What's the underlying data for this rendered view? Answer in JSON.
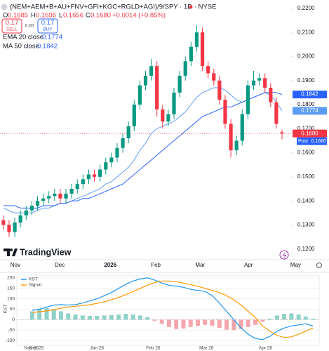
{
  "header": {
    "symbol": "(NEM+AEM+B+AU+FNV+GFI+KGC+RGLD+AGI)/9/SPY · 1D · NYSE",
    "o_key": "O",
    "o": "0.1685",
    "h_key": "H",
    "h": "0.1695",
    "l_key": "L",
    "l": "0.1656",
    "c_key": "C",
    "c": "0.1680",
    "change": "+0.0014 (+0.85%)",
    "sell_price": "0.17",
    "sell": "SELL",
    "spread": "0.00",
    "buy_price": "0.17",
    "buy": "BUY",
    "post": "Post",
    "logo": "TradingView"
  },
  "chart_data": [
    {
      "type": "candlestick",
      "x": [
        0,
        1,
        2,
        3,
        4,
        5,
        6,
        7,
        8,
        9,
        10,
        11,
        12,
        13,
        14,
        15,
        16,
        17,
        18,
        19,
        20,
        21,
        22,
        23,
        24,
        25,
        26,
        27,
        28,
        29,
        30,
        31,
        32,
        33,
        34,
        35,
        36,
        37,
        38,
        39,
        40,
        41,
        42,
        43,
        44,
        45,
        46,
        47,
        48,
        49
      ],
      "open": [
        0.132,
        0.13,
        0.127,
        0.131,
        0.134,
        0.136,
        0.138,
        0.14,
        0.141,
        0.142,
        0.143,
        0.141,
        0.143,
        0.145,
        0.147,
        0.149,
        0.151,
        0.15,
        0.153,
        0.156,
        0.158,
        0.162,
        0.166,
        0.171,
        0.18,
        0.188,
        0.192,
        0.196,
        0.178,
        0.173,
        0.176,
        0.185,
        0.192,
        0.198,
        0.204,
        0.21,
        0.196,
        0.193,
        0.19,
        0.182,
        0.172,
        0.161,
        0.165,
        0.176,
        0.188,
        0.19,
        0.191,
        0.187,
        0.181,
        0.1685
      ],
      "high": [
        0.134,
        0.132,
        0.133,
        0.136,
        0.138,
        0.14,
        0.142,
        0.143,
        0.144,
        0.145,
        0.145,
        0.145,
        0.147,
        0.149,
        0.151,
        0.153,
        0.153,
        0.155,
        0.158,
        0.16,
        0.164,
        0.168,
        0.173,
        0.182,
        0.19,
        0.194,
        0.199,
        0.198,
        0.18,
        0.178,
        0.187,
        0.194,
        0.2,
        0.206,
        0.213,
        0.212,
        0.198,
        0.195,
        0.192,
        0.184,
        0.174,
        0.167,
        0.178,
        0.19,
        0.194,
        0.193,
        0.193,
        0.189,
        0.183,
        0.1695
      ],
      "low": [
        0.128,
        0.125,
        0.125,
        0.129,
        0.132,
        0.134,
        0.136,
        0.138,
        0.139,
        0.14,
        0.139,
        0.139,
        0.141,
        0.143,
        0.145,
        0.147,
        0.148,
        0.148,
        0.151,
        0.154,
        0.156,
        0.16,
        0.164,
        0.169,
        0.178,
        0.186,
        0.19,
        0.175,
        0.17,
        0.171,
        0.174,
        0.183,
        0.19,
        0.196,
        0.202,
        0.194,
        0.191,
        0.188,
        0.18,
        0.17,
        0.158,
        0.159,
        0.163,
        0.174,
        0.186,
        0.188,
        0.185,
        0.179,
        0.17,
        0.1656
      ],
      "close": [
        0.13,
        0.127,
        0.131,
        0.134,
        0.136,
        0.138,
        0.14,
        0.141,
        0.142,
        0.143,
        0.141,
        0.143,
        0.145,
        0.147,
        0.149,
        0.151,
        0.15,
        0.153,
        0.156,
        0.158,
        0.162,
        0.166,
        0.171,
        0.18,
        0.188,
        0.192,
        0.196,
        0.178,
        0.173,
        0.176,
        0.185,
        0.192,
        0.198,
        0.204,
        0.21,
        0.196,
        0.193,
        0.19,
        0.182,
        0.172,
        0.161,
        0.165,
        0.176,
        0.188,
        0.19,
        0.191,
        0.187,
        0.181,
        0.172,
        0.168
      ],
      "up_color": "#089981",
      "down_color": "#f23645",
      "series": [
        {
          "name": "EMA 20 close",
          "legend_value": "0.1774",
          "color": "#5b9cf6",
          "values": [
            0.137,
            0.136,
            0.135,
            0.135,
            0.135,
            0.135,
            0.136,
            0.137,
            0.137,
            0.138,
            0.139,
            0.139,
            0.14,
            0.141,
            0.142,
            0.143,
            0.144,
            0.145,
            0.147,
            0.148,
            0.15,
            0.152,
            0.154,
            0.157,
            0.161,
            0.164,
            0.168,
            0.17,
            0.171,
            0.172,
            0.173,
            0.175,
            0.177,
            0.18,
            0.183,
            0.185,
            0.186,
            0.187,
            0.187,
            0.186,
            0.184,
            0.182,
            0.181,
            0.182,
            0.183,
            0.184,
            0.185,
            0.184,
            0.181,
            0.1774
          ]
        },
        {
          "name": "MA 50 close",
          "legend_value": "0.1842",
          "color": "#2962ff",
          "values": [
            0.138,
            0.138,
            0.138,
            0.137,
            0.137,
            0.137,
            0.137,
            0.138,
            0.138,
            0.138,
            0.139,
            0.139,
            0.14,
            0.14,
            0.141,
            0.141,
            0.142,
            0.143,
            0.144,
            0.145,
            0.146,
            0.147,
            0.149,
            0.151,
            0.153,
            0.155,
            0.157,
            0.159,
            0.161,
            0.163,
            0.165,
            0.167,
            0.169,
            0.171,
            0.173,
            0.175,
            0.176,
            0.177,
            0.178,
            0.179,
            0.179,
            0.18,
            0.181,
            0.182,
            0.183,
            0.184,
            0.185,
            0.185,
            0.185,
            0.1842
          ]
        }
      ],
      "xlim": [
        -0.6,
        50.6
      ],
      "xticks": [
        {
          "value": 2.1,
          "label": "Nov"
        },
        {
          "value": 9.9,
          "label": "Dec"
        },
        {
          "value": 18.8,
          "label": "2026"
        },
        {
          "value": 26.8,
          "label": "Feb"
        },
        {
          "value": 34.6,
          "label": "Mar"
        },
        {
          "value": 43.1,
          "label": "Apr"
        },
        {
          "value": 51.4,
          "label": "May"
        }
      ],
      "ylim": [
        0.117,
        0.222
      ],
      "yticks": [
        {
          "value": 0.12,
          "label": "0.1200"
        },
        {
          "value": 0.13,
          "label": "0.1300"
        },
        {
          "value": 0.14,
          "label": "0.1400"
        },
        {
          "value": 0.15,
          "label": "0.1500"
        },
        {
          "value": 0.16,
          "label": "0.1600"
        },
        {
          "value": 0.17,
          "label": "0.1700"
        },
        {
          "value": 0.18,
          "label": "0.1800"
        },
        {
          "value": 0.19,
          "label": "0.1900"
        },
        {
          "value": 0.2,
          "label": "0.2000"
        },
        {
          "value": 0.21,
          "label": "0.2100"
        },
        {
          "value": 0.22,
          "label": "0.2200"
        }
      ],
      "grid": false
    },
    {
      "type": "line",
      "x": [
        0,
        1,
        2,
        3,
        4,
        5,
        6,
        7,
        8,
        9,
        10,
        11,
        12,
        13,
        14,
        15,
        16,
        17,
        18,
        19,
        20,
        21,
        22,
        23,
        24,
        25,
        26,
        27,
        28,
        29,
        30,
        31,
        32,
        33,
        34,
        35,
        36,
        37,
        38,
        39
      ],
      "series": [
        {
          "name": "KST",
          "color": "#2196f3",
          "values": [
            45,
            50,
            60,
            70,
            72,
            70,
            72,
            80,
            90,
            100,
            115,
            130,
            150,
            170,
            185,
            195,
            200,
            190,
            175,
            165,
            160,
            155,
            145,
            140,
            135,
            115,
            80,
            40,
            0,
            -40,
            -70,
            -90,
            -95,
            -80,
            -55,
            -40,
            -30,
            -25,
            -20,
            -30
          ]
        },
        {
          "name": "Signal",
          "color": "#ff9800",
          "values": [
            35,
            38,
            42,
            48,
            55,
            60,
            64,
            68,
            72,
            78,
            85,
            95,
            107,
            120,
            135,
            150,
            165,
            178,
            185,
            185,
            182,
            175,
            168,
            160,
            150,
            140,
            130,
            115,
            95,
            70,
            40,
            10,
            -30,
            -55,
            -75,
            -85,
            -82,
            -70,
            -55,
            -40
          ]
        }
      ],
      "histogram": {
        "values": [
          40,
          50,
          55,
          50,
          40,
          30,
          25,
          20,
          18,
          18,
          20,
          22,
          25,
          28,
          25,
          20,
          12,
          -5,
          -20,
          -35,
          -45,
          -42,
          -35,
          -30,
          -25,
          -30,
          -40,
          -48,
          -50,
          -45,
          -35,
          -25,
          -10,
          5,
          20,
          28,
          30,
          25,
          15,
          5
        ],
        "positive_color": "#8fd1c8",
        "negative_color": "#f4a6ac"
      },
      "ylabel": "KST",
      "xlim": [
        -2.14,
        39.86
      ],
      "xticks": [
        {
          "value": -0.1,
          "label": "Nov 25"
        },
        {
          "value": 0.6,
          "label": "Dec 25"
        },
        {
          "value": 9.0,
          "label": "Jan 26"
        },
        {
          "value": 16.8,
          "label": "Feb 26"
        },
        {
          "value": 24.2,
          "label": "Mar 26"
        },
        {
          "value": 32.4,
          "label": "Apr 26"
        }
      ],
      "ylim": [
        -123,
        213
      ],
      "yticks": [
        200,
        150,
        100,
        50,
        0,
        -50,
        -100
      ],
      "grid": true
    }
  ]
}
